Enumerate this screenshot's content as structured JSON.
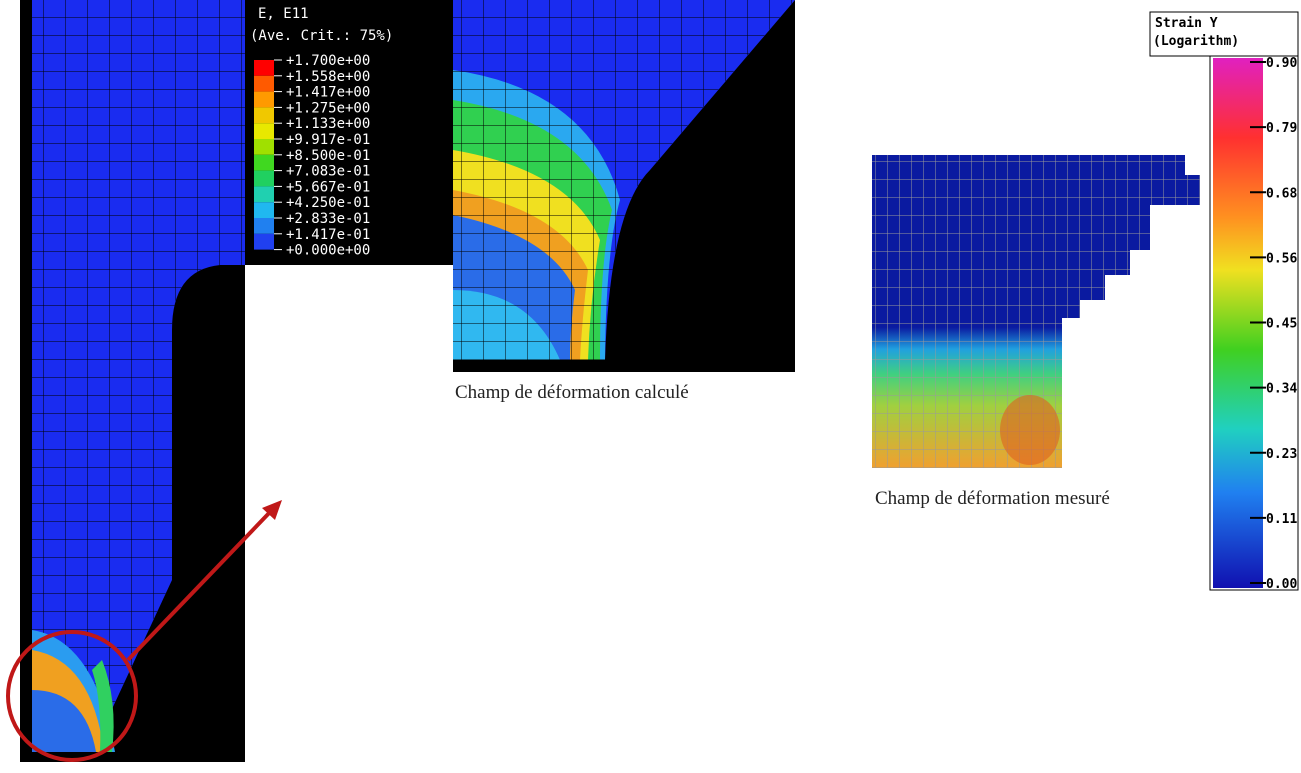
{
  "fe_legend": {
    "title": "E, E11",
    "subtitle": "(Ave. Crit.: 75%)",
    "labels": [
      "+1.700e+00",
      "+1.558e+00",
      "+1.417e+00",
      "+1.275e+00",
      "+1.133e+00",
      "+9.917e-01",
      "+8.500e-01",
      "+7.083e-01",
      "+5.667e-01",
      "+4.250e-01",
      "+2.833e-01",
      "+1.417e-01",
      "+0.000e+00"
    ]
  },
  "captions": {
    "computed": "Champ de déformation calculé",
    "measured": "Champ de déformation mesuré"
  },
  "colorbar": {
    "title": "Strain Y",
    "subtitle": "(Logarithm)",
    "labels": [
      "0.90",
      "0.79",
      "0.68",
      "0.56",
      "0.45",
      "0.34",
      "0.23",
      "0.11",
      "0.00"
    ]
  }
}
